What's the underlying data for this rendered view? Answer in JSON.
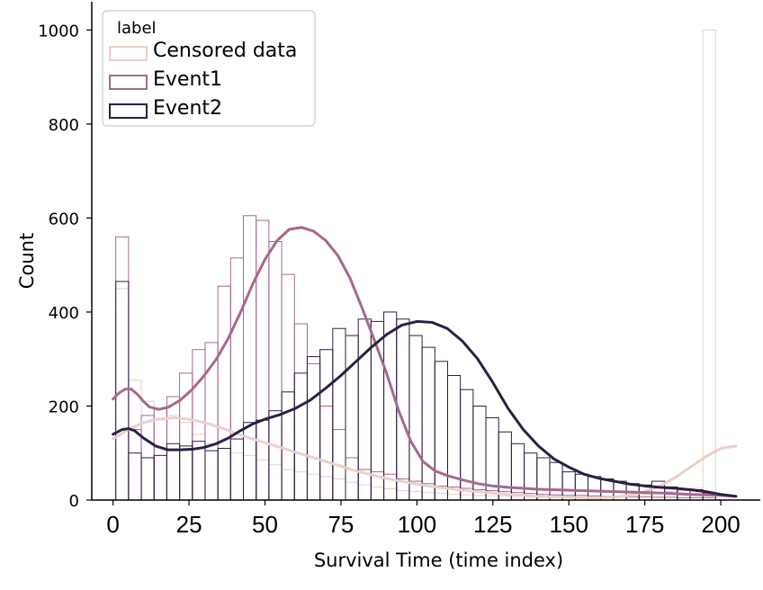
{
  "chart_data": {
    "type": "histogram",
    "title": "",
    "xlabel": "Survival Time (time index)",
    "ylabel": "Count",
    "xlim": [
      -7,
      213
    ],
    "ylim": [
      0,
      1060
    ],
    "xticks": [
      0,
      25,
      50,
      75,
      100,
      125,
      150,
      175,
      200
    ],
    "yticks": [
      0,
      200,
      400,
      600,
      800,
      1000
    ],
    "bin_width": 4.2,
    "bin_start": 0.9,
    "legend": {
      "title": "label",
      "position": "upper-left"
    },
    "colors": {
      "Censored data": "#ebd0c9",
      "Event1": "#a8678e",
      "Event2": "#2d1f45"
    },
    "series": [
      {
        "name": "Censored data",
        "counts": [
          450,
          255,
          210,
          195,
          180,
          165,
          140,
          120,
          110,
          100,
          95,
          85,
          75,
          65,
          60,
          55,
          50,
          45,
          38,
          32,
          28,
          24,
          20,
          18,
          16,
          14,
          12,
          11,
          10,
          9,
          8,
          8,
          7,
          7,
          6,
          6,
          5,
          5,
          6,
          8,
          10,
          12,
          14,
          18,
          20,
          25,
          1000
        ],
        "kde_x": [
          0,
          5,
          10,
          15,
          20,
          25,
          30,
          35,
          40,
          45,
          50,
          55,
          60,
          65,
          70,
          75,
          80,
          85,
          90,
          95,
          100,
          105,
          110,
          115,
          120,
          125,
          130,
          135,
          140,
          145,
          150,
          155,
          160,
          165,
          170,
          175,
          180,
          185,
          190,
          195,
          200,
          205
        ],
        "kde_y": [
          130,
          150,
          165,
          172,
          175,
          172,
          165,
          155,
          143,
          132,
          122,
          112,
          102,
          92,
          82,
          72,
          62,
          54,
          46,
          40,
          34,
          29,
          25,
          21,
          18,
          15,
          12,
          10,
          8,
          7,
          6,
          5,
          5,
          6,
          10,
          18,
          30,
          48,
          70,
          92,
          110,
          115
        ]
      },
      {
        "name": "Event1",
        "counts": [
          560,
          150,
          180,
          195,
          220,
          270,
          320,
          335,
          455,
          515,
          605,
          595,
          550,
          480,
          375,
          290,
          200,
          150,
          90,
          65,
          60,
          55,
          45,
          40,
          35,
          30,
          28,
          25,
          22,
          20,
          18,
          16,
          14,
          12,
          11,
          10,
          10,
          9,
          8,
          8,
          7,
          7,
          6,
          6,
          5,
          5,
          5
        ],
        "kde_x": [
          0,
          2,
          4,
          6,
          8,
          10,
          12,
          15,
          18,
          22,
          26,
          30,
          34,
          38,
          42,
          46,
          50,
          54,
          58,
          62,
          66,
          70,
          74,
          78,
          82,
          86,
          90,
          94,
          98,
          102,
          106,
          110,
          115,
          120,
          125,
          130,
          135,
          140,
          150,
          160,
          170,
          180,
          190,
          200,
          205
        ],
        "kde_y": [
          215,
          228,
          236,
          236,
          225,
          210,
          198,
          193,
          197,
          212,
          235,
          265,
          300,
          345,
          400,
          460,
          512,
          552,
          576,
          580,
          572,
          552,
          520,
          472,
          408,
          340,
          270,
          190,
          125,
          82,
          62,
          52,
          43,
          35,
          30,
          27,
          25,
          23,
          21,
          19,
          17,
          15,
          12,
          10,
          8
        ]
      },
      {
        "name": "Event2",
        "counts": [
          465,
          100,
          90,
          95,
          120,
          115,
          125,
          105,
          110,
          130,
          165,
          170,
          190,
          230,
          270,
          305,
          320,
          365,
          350,
          385,
          380,
          400,
          385,
          350,
          325,
          295,
          265,
          235,
          200,
          175,
          145,
          120,
          100,
          90,
          80,
          60,
          55,
          50,
          45,
          40,
          35,
          32,
          40,
          28,
          24,
          22,
          15
        ],
        "kde_x": [
          0,
          3,
          5,
          7,
          10,
          14,
          18,
          22,
          26,
          30,
          34,
          38,
          42,
          46,
          50,
          55,
          60,
          65,
          70,
          75,
          80,
          85,
          90,
          95,
          100,
          105,
          110,
          115,
          120,
          125,
          130,
          135,
          140,
          145,
          150,
          155,
          160,
          165,
          170,
          175,
          180,
          185,
          190,
          195,
          200,
          205
        ],
        "kde_y": [
          140,
          150,
          152,
          148,
          132,
          115,
          107,
          107,
          108,
          112,
          120,
          132,
          148,
          162,
          172,
          182,
          195,
          213,
          238,
          265,
          295,
          325,
          352,
          372,
          380,
          378,
          365,
          338,
          300,
          250,
          195,
          150,
          115,
          88,
          70,
          55,
          46,
          40,
          34,
          30,
          27,
          25,
          22,
          18,
          12,
          8
        ]
      }
    ]
  }
}
